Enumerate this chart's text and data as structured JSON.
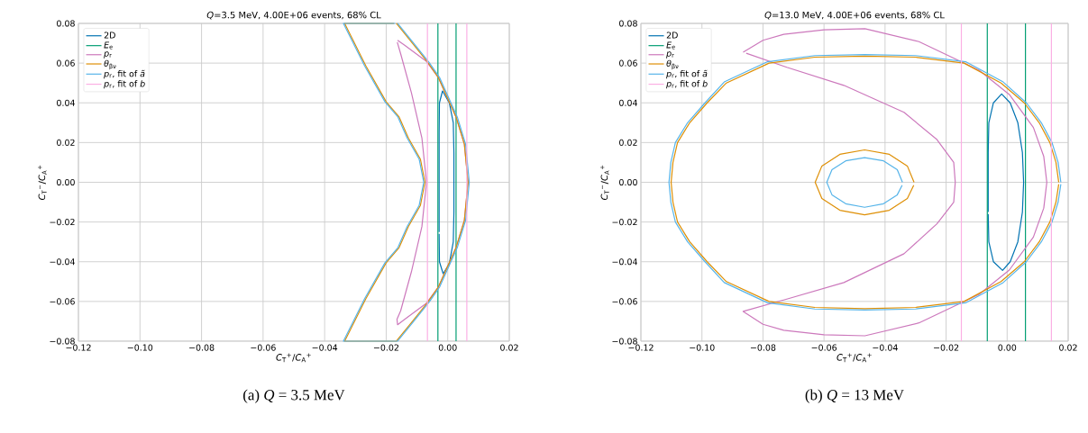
{
  "chart_data": [
    {
      "type": "line",
      "title": "*Q*=3.5 MeV, 4.00E+06 events, 68% CL",
      "xlabel": "*C*$_{T}$$^{+}$/*C*$_{A}$$^{+}$",
      "ylabel": "*C*$_{T}$$^{−}$/*C*$_{A}$$^{+}$",
      "annotations": [
        "(a) *Q* = 3.5 MeV"
      ],
      "xlim": [
        -0.12,
        0.02
      ],
      "ylim": [
        -0.08,
        0.08
      ],
      "xticks": [
        {
          "value": -0.12,
          "label": "−0.12"
        },
        {
          "value": -0.1,
          "label": "−0.10"
        },
        {
          "value": -0.08,
          "label": "−0.08"
        },
        {
          "value": -0.06,
          "label": "−0.06"
        },
        {
          "value": -0.04,
          "label": "−0.04"
        },
        {
          "value": -0.02,
          "label": "−0.02"
        },
        {
          "value": 0,
          "label": "0.00"
        },
        {
          "value": 0.02,
          "label": "0.02"
        }
      ],
      "yticks": [
        {
          "value": -0.08,
          "label": "−0.08"
        },
        {
          "value": -0.06,
          "label": "−0.06"
        },
        {
          "value": -0.04,
          "label": "−0.04"
        },
        {
          "value": -0.02,
          "label": "−0.02"
        },
        {
          "value": 0,
          "label": "0.00"
        },
        {
          "value": 0.02,
          "label": "0.02"
        },
        {
          "value": 0.04,
          "label": "0.04"
        },
        {
          "value": 0.06,
          "label": "0.06"
        },
        {
          "value": 0.08,
          "label": "0.08"
        }
      ],
      "grid": true,
      "legend": "top left",
      "series": [
        {
          "name": "2D",
          "color": "#0173b2",
          "x": [
            -0.0028,
            -0.0028,
            -0.0027,
            -0.0017,
            0.0005,
            0.0018,
            0.002,
            0.002,
            0.0018,
            0.0005,
            -0.0015,
            -0.0027,
            -0.0028
          ],
          "values": [
            -0.025,
            0.025,
            0.04,
            0.046,
            0.04,
            0.03,
            0.015,
            -0.015,
            -0.03,
            -0.041,
            -0.046,
            -0.04,
            -0.026
          ]
        },
        {
          "name": "*E*$_{e}$",
          "color": "#029e73",
          "x": [
            -0.0032,
            -0.0032
          ],
          "values": [
            0.08,
            -0.08
          ]
        },
        {
          "color": "#029e73",
          "x": [
            0.0027,
            0.0027
          ],
          "values": [
            0.08,
            -0.08
          ]
        },
        {
          "name": "*p*$_{r}$",
          "color": "#cc78bc",
          "x": [
            -0.0163,
            -0.014,
            -0.007,
            -0.003,
            0.0027,
            0.0054,
            0.0066,
            0.0054,
            0.0027,
            -0.003,
            -0.007,
            -0.014,
            -0.0163,
            -0.0165,
            -0.0153,
            -0.0118,
            -0.0084,
            -0.0069,
            -0.0084,
            -0.0118,
            -0.0153,
            -0.0164
          ],
          "values": [
            0.0715,
            0.069,
            0.061,
            0.0526,
            0.0329,
            0.0192,
            0,
            -0.0192,
            -0.0329,
            -0.0526,
            -0.061,
            -0.069,
            -0.0717,
            -0.069,
            -0.0647,
            -0.045,
            -0.0223,
            0,
            0.0223,
            0.045,
            0.0647,
            0.0705
          ]
        },
        {
          "name": "*θ*$_{βν}$",
          "color": "#de8f05",
          "x": [
            -0.0167,
            -0.0118,
            -0.0064,
            -0.003,
            0.0027,
            0.0054,
            0.0066,
            0.0054,
            0.0027,
            -0.003,
            -0.0064,
            -0.0118,
            -0.0167,
            -0.0335,
            -0.0266,
            -0.02,
            -0.0158,
            -0.0128,
            -0.0089,
            -0.0074,
            -0.0089,
            -0.0128,
            -0.0158,
            -0.02,
            -0.0266,
            -0.0335,
            -0.0175
          ],
          "values": [
            0.08,
            0.0707,
            0.0602,
            0.0526,
            0.0329,
            0.0192,
            0,
            -0.0192,
            -0.0329,
            -0.0526,
            -0.0602,
            -0.0707,
            -0.08,
            -0.08,
            -0.0586,
            -0.0405,
            -0.0329,
            -0.0223,
            -0.0117,
            0,
            0.0117,
            0.0223,
            0.0329,
            0.0405,
            0.0586,
            0.08,
            0.08
          ]
        },
        {
          "name": "*p*$_{r}$, fit of *ã*",
          "color": "#56b4e9",
          "x": [
            -0.0163,
            -0.0114,
            -0.006,
            -0.0026,
            0.0031,
            0.0058,
            0.007,
            0.0058,
            0.0031,
            -0.0026,
            -0.006,
            -0.0114,
            -0.0163,
            -0.0339,
            -0.027,
            -0.0204,
            -0.0162,
            -0.0132,
            -0.0093,
            -0.0078,
            -0.0093,
            -0.0132,
            -0.0162,
            -0.0204,
            -0.027,
            -0.0339,
            -0.0171
          ],
          "values": [
            0.08,
            0.0707,
            0.0602,
            0.0526,
            0.0329,
            0.0192,
            0,
            -0.0192,
            -0.0329,
            -0.0526,
            -0.0602,
            -0.0707,
            -0.08,
            -0.08,
            -0.0586,
            -0.0405,
            -0.0329,
            -0.0223,
            -0.0117,
            0,
            0.0117,
            0.0223,
            0.0329,
            0.0405,
            0.0586,
            0.08,
            0.08
          ]
        },
        {
          "name": "*p*$_{r}$, fit of *b*",
          "color": "#fbafe4",
          "x": [
            -0.0066,
            -0.0066
          ],
          "values": [
            0.08,
            -0.08
          ]
        },
        {
          "color": "#fbafe4",
          "x": [
            0.0062,
            0.0062
          ],
          "values": [
            0.08,
            -0.08
          ]
        }
      ]
    },
    {
      "type": "line",
      "title": "*Q*=13.0 MeV, 4.00E+06 events, 68% CL",
      "xlabel": "*C*$_{T}$$^{+}$/*C*$_{A}$$^{+}$",
      "ylabel": "*C*$_{T}$$^{−}$/*C*$_{A}$$^{+}$",
      "annotations": [
        "(b) *Q* = 13 MeV"
      ],
      "xlim": [
        -0.12,
        0.02
      ],
      "ylim": [
        -0.08,
        0.08
      ],
      "xticks": [
        {
          "value": -0.12,
          "label": "−0.12"
        },
        {
          "value": -0.1,
          "label": "−0.10"
        },
        {
          "value": -0.08,
          "label": "−0.08"
        },
        {
          "value": -0.06,
          "label": "−0.06"
        },
        {
          "value": -0.04,
          "label": "−0.04"
        },
        {
          "value": -0.02,
          "label": "−0.02"
        },
        {
          "value": 0,
          "label": "0.00"
        },
        {
          "value": 0.02,
          "label": "0.02"
        }
      ],
      "yticks": [
        {
          "value": -0.08,
          "label": "−0.08"
        },
        {
          "value": -0.06,
          "label": "−0.06"
        },
        {
          "value": -0.04,
          "label": "−0.04"
        },
        {
          "value": -0.02,
          "label": "−0.02"
        },
        {
          "value": 0,
          "label": "0.00"
        },
        {
          "value": 0.02,
          "label": "0.02"
        },
        {
          "value": 0.04,
          "label": "0.04"
        },
        {
          "value": 0.06,
          "label": "0.06"
        },
        {
          "value": 0.08,
          "label": "0.08"
        }
      ],
      "grid": true,
      "legend": "top left",
      "series": [
        {
          "name": "2D",
          "color": "#0173b2",
          "x": [
            -0.0062,
            -0.0062,
            -0.006,
            -0.0045,
            -0.0018,
            0.001,
            0.0035,
            0.005,
            0.0054,
            0.005,
            0.0035,
            0.001,
            -0.0015,
            -0.0045,
            -0.006,
            -0.0062
          ],
          "values": [
            -0.015,
            0.015,
            0.03,
            0.04,
            0.0445,
            0.04,
            0.03,
            0.015,
            0,
            -0.015,
            -0.03,
            -0.04,
            -0.0444,
            -0.04,
            -0.03,
            -0.016
          ]
        },
        {
          "name": "*E*$_{e}$",
          "color": "#029e73",
          "x": [
            -0.0065,
            -0.0065
          ],
          "values": [
            0.08,
            -0.08
          ]
        },
        {
          "color": "#029e73",
          "x": [
            0.006,
            0.006
          ],
          "values": [
            0.08,
            -0.08
          ]
        },
        {
          "name": "*p*$_{r}$",
          "color": "#cc78bc",
          "x": [
            -0.0865,
            -0.08,
            -0.0732,
            -0.06,
            -0.0466,
            -0.0289,
            -0.0092,
            0.0007,
            0.0086,
            0.012,
            0.013,
            0.012,
            0.0086,
            0.0007,
            -0.0092,
            -0.0289,
            -0.0466,
            -0.06,
            -0.0732,
            -0.08,
            -0.0865,
            -0.0722,
            -0.0535,
            -0.0338,
            -0.023,
            -0.0175,
            -0.017,
            -0.0175,
            -0.023,
            -0.0338,
            -0.0535,
            -0.0722,
            -0.0855
          ],
          "values": [
            0.0655,
            0.0715,
            0.0745,
            0.0768,
            0.0773,
            0.0708,
            0.0564,
            0.0442,
            0.0276,
            0.013,
            0,
            -0.013,
            -0.0276,
            -0.0442,
            -0.0564,
            -0.0708,
            -0.0773,
            -0.0768,
            -0.0745,
            -0.0715,
            -0.065,
            -0.0588,
            -0.0505,
            -0.036,
            -0.0209,
            -0.01,
            0,
            0.01,
            0.0215,
            0.0352,
            0.0488,
            0.0579,
            0.065
          ]
        },
        {
          "name": "*θ*$_{βν}$",
          "color": "#de8f05",
          "x": [
            0.0169,
            0.016,
            0.014,
            0.0105,
            0.0056,
            -0.002,
            -0.0141,
            -0.03,
            -0.0466,
            -0.063,
            -0.078,
            -0.092,
            -0.0983,
            -0.104,
            -0.108,
            -0.1095,
            -0.1101,
            -0.1095,
            -0.108,
            -0.104,
            -0.0983,
            -0.092,
            -0.078,
            -0.063,
            -0.0466,
            -0.03,
            -0.0141,
            -0.002,
            0.0056,
            0.0105,
            0.014,
            0.016,
            0.0169
          ],
          "values": [
            0,
            0.01,
            0.02,
            0.03,
            0.04,
            0.05,
            0.06,
            0.063,
            0.0635,
            0.063,
            0.06,
            0.05,
            0.04,
            0.03,
            0.02,
            0.01,
            0,
            -0.01,
            -0.02,
            -0.03,
            -0.04,
            -0.05,
            -0.06,
            -0.063,
            -0.0636,
            -0.063,
            -0.06,
            -0.05,
            -0.04,
            -0.03,
            -0.02,
            -0.01,
            -0.001
          ]
        },
        {
          "color": "#de8f05",
          "x": [
            -0.0305,
            -0.0327,
            -0.0386,
            -0.0467,
            -0.0548,
            -0.0607,
            -0.0629,
            -0.0607,
            -0.0548,
            -0.0467,
            -0.0386,
            -0.0327,
            -0.0306
          ],
          "values": [
            0,
            0.0082,
            0.0141,
            0.0163,
            0.0141,
            0.0082,
            0,
            -0.0082,
            -0.0141,
            -0.0164,
            -0.0141,
            -0.0082,
            -0.0015
          ]
        },
        {
          "name": "*p*$_{r}$, fit of *ã*",
          "color": "#56b4e9",
          "x": [
            0.0176,
            0.0167,
            0.0147,
            0.0112,
            0.0063,
            -0.0013,
            -0.0136,
            -0.03,
            -0.0466,
            -0.063,
            -0.0785,
            -0.0927,
            -0.099,
            -0.1047,
            -0.1087,
            -0.1102,
            -0.1108,
            -0.1102,
            -0.1087,
            -0.1047,
            -0.099,
            -0.0927,
            -0.0785,
            -0.063,
            -0.0466,
            -0.03,
            -0.0136,
            -0.0013,
            0.0063,
            0.0112,
            0.0147,
            0.0167,
            0.0176
          ],
          "values": [
            0,
            0.01,
            0.02,
            0.03,
            0.04,
            0.0505,
            0.0607,
            0.0638,
            0.0643,
            0.0638,
            0.0607,
            0.0505,
            0.04,
            0.03,
            0.02,
            0.01,
            0,
            -0.01,
            -0.02,
            -0.03,
            -0.04,
            -0.0505,
            -0.0607,
            -0.0638,
            -0.0643,
            -0.0638,
            -0.0607,
            -0.0505,
            -0.04,
            -0.03,
            -0.02,
            -0.01,
            -0.001
          ]
        },
        {
          "color": "#56b4e9",
          "x": [
            -0.0343,
            -0.036,
            -0.0405,
            -0.0467,
            -0.0529,
            -0.0574,
            -0.0591,
            -0.0574,
            -0.0529,
            -0.0467,
            -0.0405,
            -0.036,
            -0.0344
          ],
          "values": [
            0,
            0.0063,
            0.0108,
            0.0124,
            0.0108,
            0.0063,
            0,
            -0.0063,
            -0.0108,
            -0.0126,
            -0.0108,
            -0.0063,
            -0.0015
          ]
        },
        {
          "name": "*p*$_{r}$, fit of *b*",
          "color": "#fbafe4",
          "x": [
            -0.015,
            -0.015
          ],
          "values": [
            0.08,
            -0.08
          ]
        },
        {
          "color": "#fbafe4",
          "x": [
            0.0145,
            0.0145
          ],
          "values": [
            0.08,
            -0.08
          ]
        }
      ]
    }
  ]
}
